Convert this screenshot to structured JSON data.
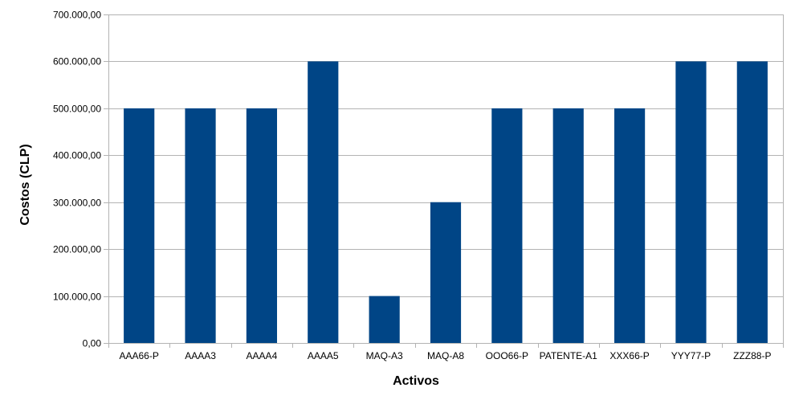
{
  "chart_data": {
    "type": "bar",
    "title": "",
    "xlabel": "Activos",
    "ylabel": "Costos (CLP)",
    "ylim": [
      0,
      700000
    ],
    "y_tick_step": 100000,
    "y_ticks": [
      "0,00",
      "100.000,00",
      "200.000,00",
      "300.000,00",
      "400.000,00",
      "500.000,00",
      "600.000,00",
      "700.000,00"
    ],
    "grid": "horizontal",
    "legend": "none",
    "bar_color": "#004586",
    "categories": [
      "AAA66-P",
      "AAAA3",
      "AAAA4",
      "AAAA5",
      "MAQ-A3",
      "MAQ-A8",
      "OOO66-P",
      "PATENTE-A1",
      "XXX66-P",
      "YYY77-P",
      "ZZZ88-P"
    ],
    "values": [
      500000,
      500000,
      500000,
      600000,
      100000,
      300000,
      500000,
      500000,
      500000,
      600000,
      600000
    ]
  }
}
